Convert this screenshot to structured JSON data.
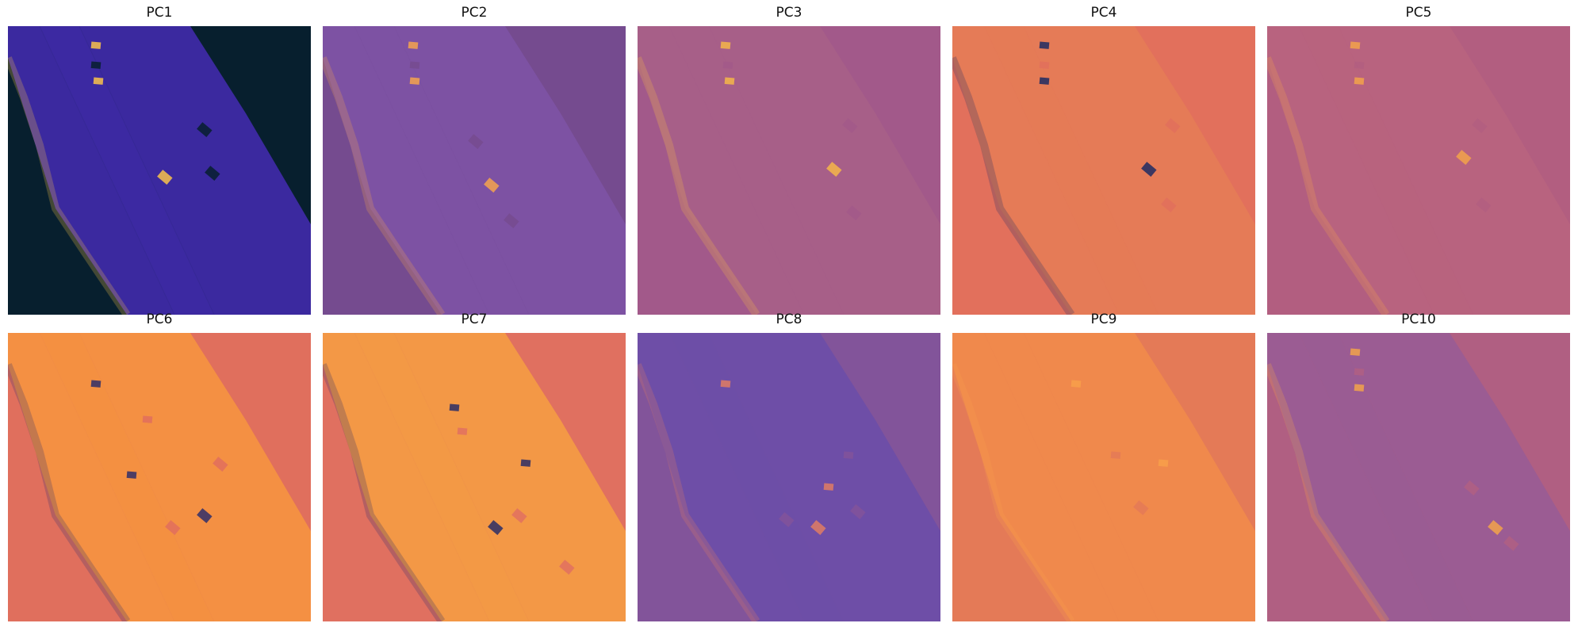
{
  "panels": [
    {
      "title": "PC1",
      "colormap": "cmr.bubblegum-like dark",
      "bg": "#071f2e",
      "strip": "#3e2aa5",
      "accent": "#f9c24a"
    },
    {
      "title": "PC2",
      "colormap": "plasma-muted",
      "bg": "#754b8f",
      "strip": "#7d52a4",
      "accent": "#f5a34e"
    },
    {
      "title": "PC3",
      "colormap": "plasma-muted",
      "bg": "#a2598a",
      "strip": "#a86088",
      "accent": "#f5b649"
    },
    {
      "title": "PC4",
      "colormap": "plasma-muted",
      "bg": "#e2705c",
      "strip": "#e57b56",
      "accent": "#1f2b63"
    },
    {
      "title": "PC5",
      "colormap": "plasma-muted",
      "bg": "#b25e80",
      "strip": "#b8637e",
      "accent": "#f2a24a"
    },
    {
      "title": "PC6",
      "colormap": "plasma-muted",
      "bg": "#e06f5d",
      "strip": "#f49141",
      "accent": "#2f2f6a"
    },
    {
      "title": "PC7",
      "colormap": "plasma-muted",
      "bg": "#e07060",
      "strip": "#f39a45",
      "accent": "#2a2d66"
    },
    {
      "title": "PC8",
      "colormap": "plasma-muted",
      "bg": "#82549a",
      "strip": "#6d4ea8",
      "accent": "#e07d63"
    },
    {
      "title": "PC9",
      "colormap": "plasma-muted",
      "bg": "#e47a57",
      "strip": "#f08a4c",
      "accent": "#f8a04a"
    },
    {
      "title": "PC10",
      "colormap": "plasma-muted",
      "bg": "#b05f82",
      "strip": "#9a5c94",
      "accent": "#f2a24a"
    }
  ]
}
